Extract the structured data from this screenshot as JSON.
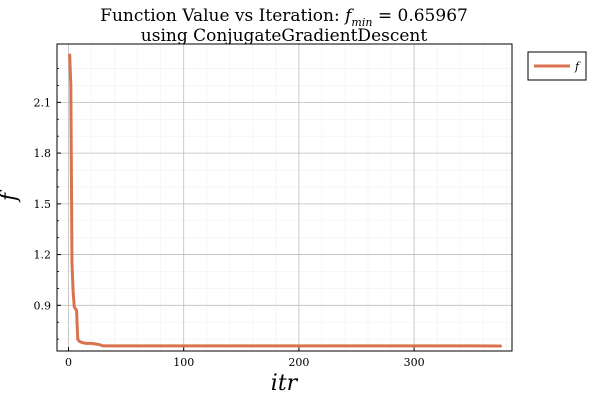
{
  "chart_data": {
    "type": "line",
    "title_line1_prefix": "Function Value vs Iteration: ",
    "title_var": "f",
    "title_sub": "min",
    "title_value": " =  0.65967",
    "title_line2": "using ConjugateGradientDescent",
    "xlabel": "itr",
    "ylabel": "f",
    "xlim": [
      -10,
      385
    ],
    "ylim": [
      0.63,
      2.445
    ],
    "xticks": [
      0,
      100,
      200,
      300
    ],
    "xtick_labels": [
      "0",
      "100",
      "200",
      "300"
    ],
    "yticks": [
      0.9,
      1.2,
      1.5,
      1.8,
      2.1
    ],
    "ytick_labels": [
      "0.9",
      "1.2",
      "1.5",
      "1.8",
      "2.1"
    ],
    "grid": true,
    "legend_position": "outside-top-right",
    "series": [
      {
        "name": "f",
        "color": "#d9734e",
        "x": [
          1,
          2,
          3,
          4,
          5,
          6,
          7,
          8,
          9,
          10,
          12,
          15,
          20,
          25,
          28,
          30,
          40,
          60,
          100,
          150,
          200,
          250,
          300,
          350,
          375
        ],
        "y": [
          2.38,
          2.2,
          1.15,
          0.98,
          0.89,
          0.88,
          0.87,
          0.7,
          0.69,
          0.685,
          0.68,
          0.675,
          0.675,
          0.67,
          0.665,
          0.66,
          0.66,
          0.66,
          0.66,
          0.66,
          0.66,
          0.66,
          0.66,
          0.66,
          0.65967
        ]
      }
    ]
  }
}
